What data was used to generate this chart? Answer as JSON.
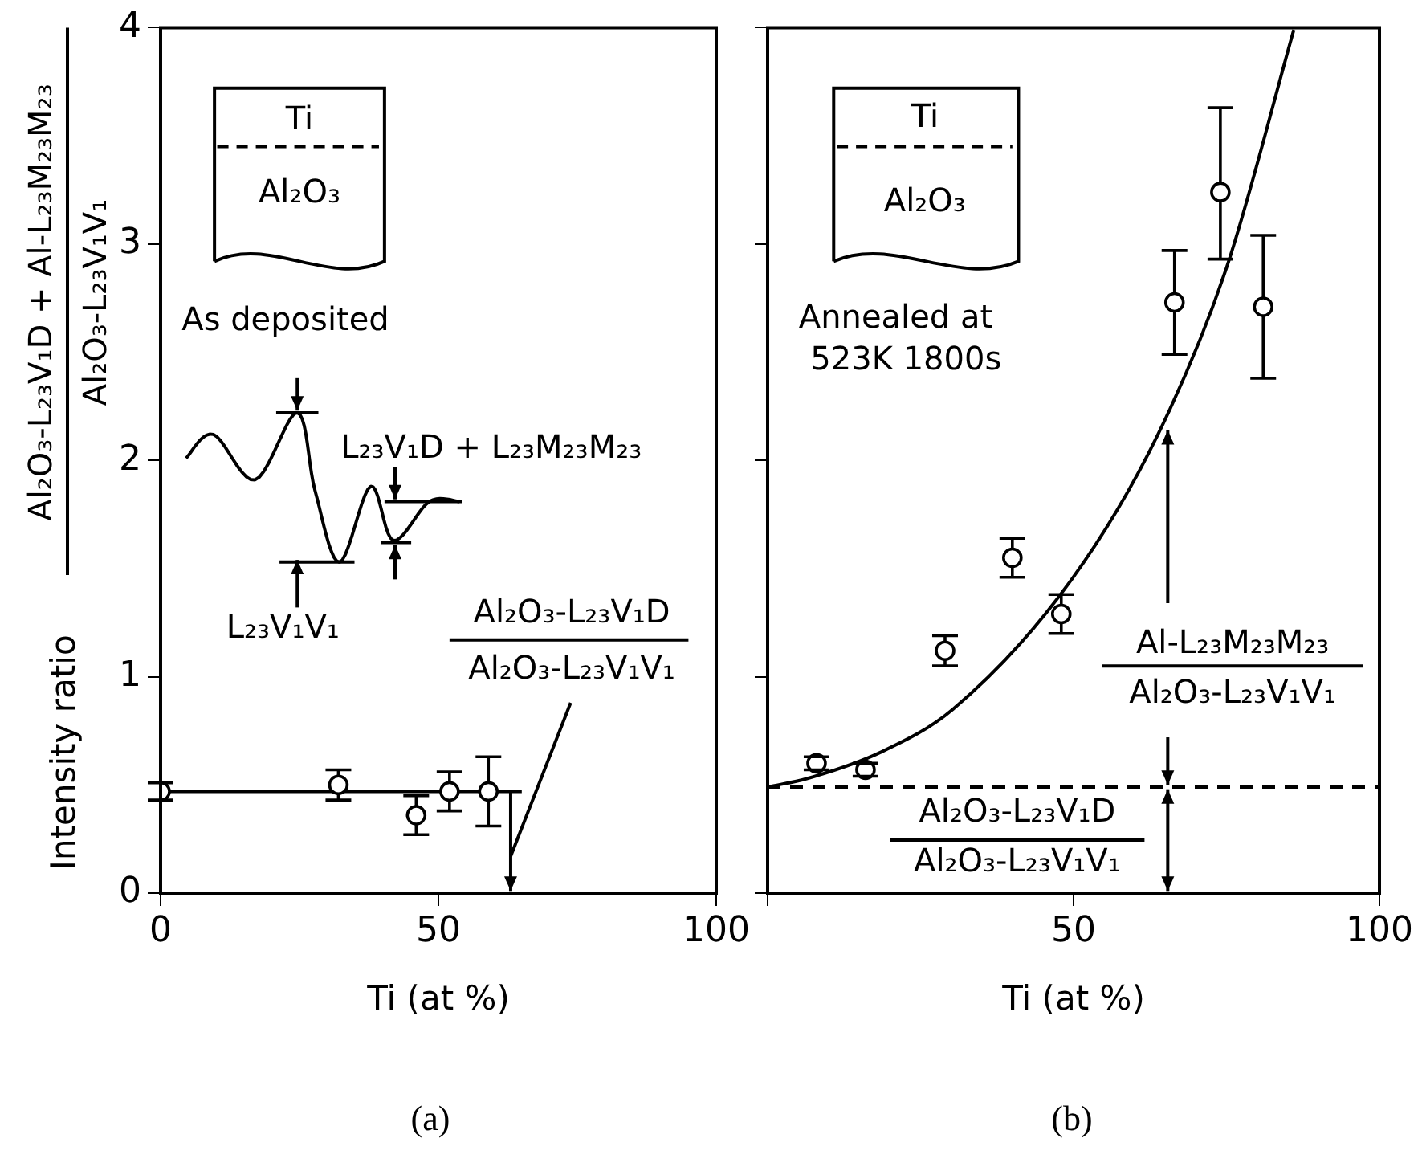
{
  "chart_data": [
    {
      "type": "scatter",
      "title": "(a)",
      "xlabel": "Ti (at %)",
      "ylabel": "Intensity ratio",
      "xlim": [
        0,
        100
      ],
      "xticks": [
        0,
        50,
        100
      ],
      "ylim": [
        0,
        4
      ],
      "yticks": [
        0,
        1,
        2,
        3,
        4
      ],
      "grid": false,
      "legend": false,
      "annotations": [
        "Ti",
        "Al₂O₃",
        "As deposited",
        "L₂₃V₁D + L₂₃M₂₃M₂₃",
        "L₂₃V₁V₁",
        "Al₂O₃-L₂₃V₁D",
        "Al₂O₃-L₂₃V₁V₁",
        "Al₂O₃-L₂₃V₁D + Al-L₂₃M₂₃M₂₃",
        "Al₂O₃-L₂₃V₁V₁"
      ],
      "series": [
        {
          "marker": "circle",
          "color": "#000000",
          "x": [
            0,
            32,
            46,
            52,
            59
          ],
          "values": [
            0.47,
            0.5,
            0.36,
            0.47,
            0.47
          ],
          "errors": [
            0.04,
            0.07,
            0.09,
            0.09,
            0.16
          ]
        },
        {
          "type": "line",
          "color": "#000000",
          "x": [
            0,
            65
          ],
          "values": [
            0.47,
            0.47
          ]
        }
      ]
    },
    {
      "type": "scatter",
      "title": "(b)",
      "xlabel": "Ti (at %)",
      "xlim": [
        0,
        100
      ],
      "xticks": [
        {
          "value": 0,
          "label": null
        },
        50,
        100
      ],
      "ylim": [
        0,
        4
      ],
      "yticks": [
        0,
        1,
        2,
        3,
        4
      ],
      "tick_labels": "x",
      "grid": false,
      "legend": false,
      "annotations": [
        "Ti",
        "Al₂O₃",
        "Annealed at",
        "523K 1800s",
        {
          "text": "Al-L₂₃M₂₃M₂₃",
          "x": 65.4,
          "y": 2.14
        },
        "Al₂O₃-L₂₃V₁V₁",
        "Al₂O₃-L₂₃V₁D",
        "Al₂O₃-L₂₃V₁V₁"
      ],
      "ref_lines": [
        {
          "axis": "y",
          "value": 0.49,
          "line_style": "dashed",
          "color": "#000000"
        }
      ],
      "series": [
        {
          "marker": "circle",
          "color": "#000000",
          "x": [
            8,
            16,
            29,
            40,
            48,
            66.5,
            74,
            81
          ],
          "values": [
            0.6,
            0.57,
            1.12,
            1.55,
            1.29,
            2.73,
            3.24,
            2.71
          ],
          "errors": [
            0.03,
            0.03,
            0.07,
            0.09,
            0.09,
            0.24,
            [
              2.93,
              3.63
            ],
            0.33
          ]
        },
        {
          "type": "line",
          "color": "#000000",
          "x": [
            0,
            6.5,
            18.4,
            30.3,
            49.7,
            63.8,
            75,
            86
          ],
          "values": [
            0.49,
            0.53,
            0.65,
            0.85,
            1.45,
            2.12,
            2.89,
            3.99
          ]
        }
      ]
    }
  ]
}
